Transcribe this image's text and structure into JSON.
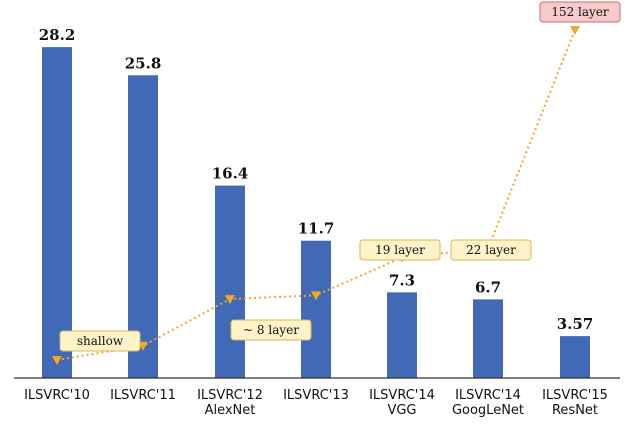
{
  "chart_data": {
    "type": "bar",
    "categories": [
      [
        "ILSVRC'10"
      ],
      [
        "ILSVRC'11"
      ],
      [
        "ILSVRC'12",
        "AlexNet"
      ],
      [
        "ILSVRC'13"
      ],
      [
        "ILSVRC'14",
        "VGG"
      ],
      [
        "ILSVRC'14",
        "GoogLeNet"
      ],
      [
        "ILSVRC'15",
        "ResNet"
      ]
    ],
    "values": [
      28.2,
      25.8,
      16.4,
      11.7,
      7.3,
      6.7,
      3.57
    ],
    "value_labels": [
      "28.2",
      "25.8",
      "16.4",
      "11.7",
      "7.3",
      "6.7",
      "3.57"
    ],
    "ylim": [
      0,
      30
    ],
    "grid": false,
    "bar_color": "#4169b5",
    "depth_line": {
      "color": "#f5a623",
      "style": "dotted",
      "marker": "triangle-down",
      "points": [
        {
          "category_index": 0,
          "layers": 1.0
        },
        {
          "category_index": 1,
          "layers": 1.5
        },
        {
          "category_index": 2,
          "layers": 8
        },
        {
          "category_index": 3,
          "layers": 8.8
        },
        {
          "category_index": 4,
          "layers": 19
        },
        {
          "category_index": 5,
          "layers": 22
        },
        {
          "category_index": 6,
          "layers": 152
        }
      ],
      "depth_range": [
        1,
        152
      ]
    },
    "annotations": [
      {
        "text": "shallow",
        "near_index": 0,
        "color": "#fdf2c8",
        "border": "#d9b85a"
      },
      {
        "text": "~ 8 layer",
        "near_index": 2,
        "color": "#fdf2c8",
        "border": "#d9b85a"
      },
      {
        "text": "19 layer",
        "near_index": 4,
        "color": "#fdf2c8",
        "border": "#d9b85a"
      },
      {
        "text": "22 layer",
        "near_index": 5,
        "color": "#fdf2c8",
        "border": "#d9b85a"
      },
      {
        "text": "152 layer",
        "near_index": 6,
        "color": "#f8c9c9",
        "border": "#c97070"
      }
    ]
  }
}
